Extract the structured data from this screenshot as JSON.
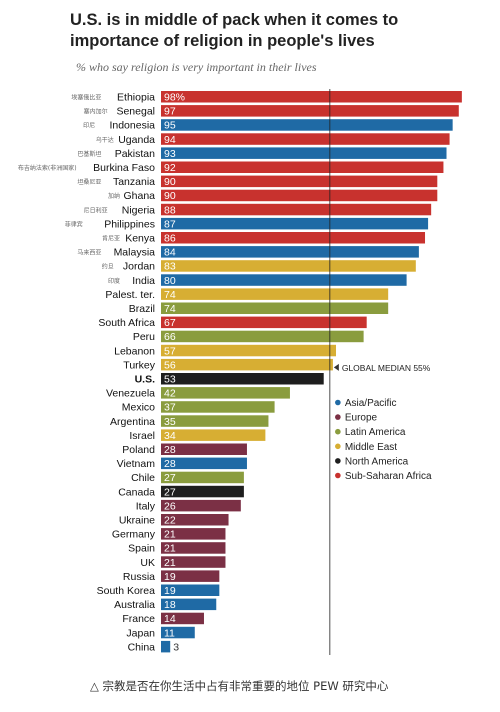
{
  "chart_data": {
    "type": "bar",
    "orientation": "horizontal",
    "title": "U.S. is in middle of pack when it comes to importance of religion in people's lives",
    "subtitle": "% who say religion is very important in their lives",
    "first_value_suffix": "%",
    "median_label": "GLOBAL MEDIAN 55%",
    "median_value": 55,
    "xlim": [
      0,
      100
    ],
    "legend_position": "right",
    "region_colors": {
      "Asia/Pacific": "#1f6aa5",
      "Europe": "#7b3045",
      "Latin America": "#8a9c3e",
      "Middle East": "#d7ae33",
      "North America": "#1e1e1e",
      "Sub-Saharan Africa": "#c8322e"
    },
    "legend": [
      "Asia/Pacific",
      "Europe",
      "Latin America",
      "Middle East",
      "North America",
      "Sub-Saharan Africa"
    ],
    "bars": [
      {
        "country": "Ethiopia",
        "zh": "埃塞俄比亚",
        "value": 98,
        "region": "Sub-Saharan Africa"
      },
      {
        "country": "Senegal",
        "zh": "塞内加尔",
        "value": 97,
        "region": "Sub-Saharan Africa"
      },
      {
        "country": "Indonesia",
        "zh": "印尼",
        "value": 95,
        "region": "Asia/Pacific"
      },
      {
        "country": "Uganda",
        "zh": "乌干达",
        "value": 94,
        "region": "Sub-Saharan Africa"
      },
      {
        "country": "Pakistan",
        "zh": "巴基斯坦",
        "value": 93,
        "region": "Asia/Pacific"
      },
      {
        "country": "Burkina Faso",
        "zh": "布吉纳法索(非洲国家)",
        "value": 92,
        "region": "Sub-Saharan Africa"
      },
      {
        "country": "Tanzania",
        "zh": "坦桑尼亚",
        "value": 90,
        "region": "Sub-Saharan Africa"
      },
      {
        "country": "Ghana",
        "zh": "加纳",
        "value": 90,
        "region": "Sub-Saharan Africa"
      },
      {
        "country": "Nigeria",
        "zh": "尼日利亚",
        "value": 88,
        "region": "Sub-Saharan Africa"
      },
      {
        "country": "Philippines",
        "zh": "菲律宾",
        "value": 87,
        "region": "Asia/Pacific"
      },
      {
        "country": "Kenya",
        "zh": "肯尼亚",
        "value": 86,
        "region": "Sub-Saharan Africa"
      },
      {
        "country": "Malaysia",
        "zh": "马来西亚",
        "value": 84,
        "region": "Asia/Pacific"
      },
      {
        "country": "Jordan",
        "zh": "约旦",
        "value": 83,
        "region": "Middle East"
      },
      {
        "country": "India",
        "zh": "印度",
        "value": 80,
        "region": "Asia/Pacific"
      },
      {
        "country": "Palest. ter.",
        "zh": "",
        "value": 74,
        "region": "Middle East"
      },
      {
        "country": "Brazil",
        "zh": "",
        "value": 74,
        "region": "Latin America"
      },
      {
        "country": "South Africa",
        "zh": "",
        "value": 67,
        "region": "Sub-Saharan Africa"
      },
      {
        "country": "Peru",
        "zh": "",
        "value": 66,
        "region": "Latin America"
      },
      {
        "country": "Lebanon",
        "zh": "",
        "value": 57,
        "region": "Middle East"
      },
      {
        "country": "Turkey",
        "zh": "",
        "value": 56,
        "region": "Middle East"
      },
      {
        "country": "U.S.",
        "zh": "",
        "value": 53,
        "region": "North America"
      },
      {
        "country": "Venezuela",
        "zh": "",
        "value": 42,
        "region": "Latin America"
      },
      {
        "country": "Mexico",
        "zh": "",
        "value": 37,
        "region": "Latin America"
      },
      {
        "country": "Argentina",
        "zh": "",
        "value": 35,
        "region": "Latin America"
      },
      {
        "country": "Israel",
        "zh": "",
        "value": 34,
        "region": "Middle East"
      },
      {
        "country": "Poland",
        "zh": "",
        "value": 28,
        "region": "Europe"
      },
      {
        "country": "Vietnam",
        "zh": "",
        "value": 28,
        "region": "Asia/Pacific"
      },
      {
        "country": "Chile",
        "zh": "",
        "value": 27,
        "region": "Latin America"
      },
      {
        "country": "Canada",
        "zh": "",
        "value": 27,
        "region": "North America"
      },
      {
        "country": "Italy",
        "zh": "",
        "value": 26,
        "region": "Europe"
      },
      {
        "country": "Ukraine",
        "zh": "",
        "value": 22,
        "region": "Europe"
      },
      {
        "country": "Germany",
        "zh": "",
        "value": 21,
        "region": "Europe"
      },
      {
        "country": "Spain",
        "zh": "",
        "value": 21,
        "region": "Europe"
      },
      {
        "country": "UK",
        "zh": "",
        "value": 21,
        "region": "Europe"
      },
      {
        "country": "Russia",
        "zh": "",
        "value": 19,
        "region": "Europe"
      },
      {
        "country": "South Korea",
        "zh": "",
        "value": 19,
        "region": "Asia/Pacific"
      },
      {
        "country": "Australia",
        "zh": "",
        "value": 18,
        "region": "Asia/Pacific"
      },
      {
        "country": "France",
        "zh": "",
        "value": 14,
        "region": "Europe"
      },
      {
        "country": "Japan",
        "zh": "",
        "value": 11,
        "region": "Asia/Pacific"
      },
      {
        "country": "China",
        "zh": "",
        "value": 3,
        "region": "Asia/Pacific"
      }
    ]
  },
  "caption": "△ 宗教是否在你生活中占有非常重要的地位 PEW 研究中心"
}
